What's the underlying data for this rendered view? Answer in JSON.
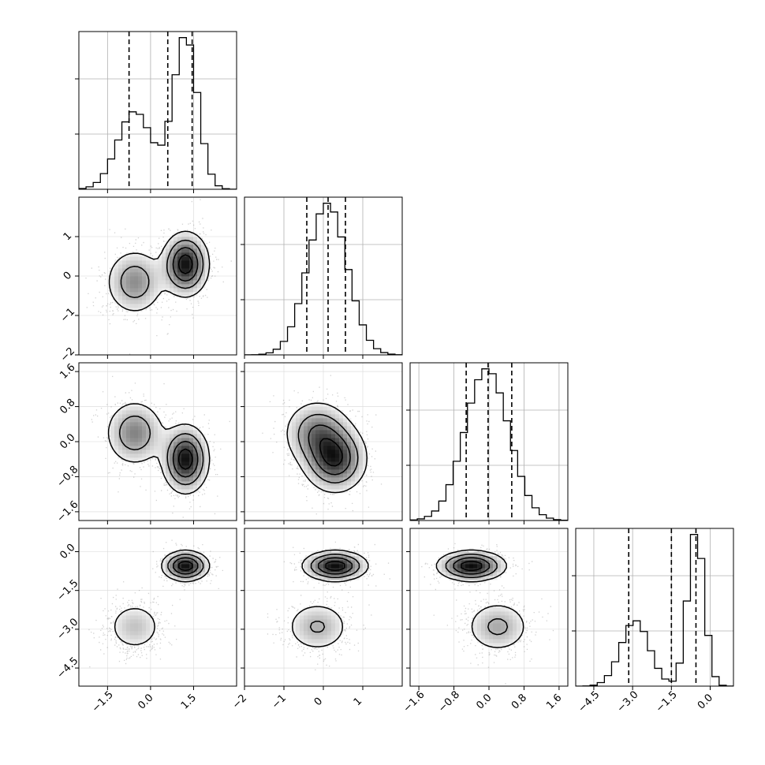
{
  "chart_data": {
    "type": "corner",
    "title": "",
    "params": [
      {
        "range": [
          -2.5,
          3.0
        ],
        "ticks": [
          -1.5,
          0.0,
          1.5
        ],
        "tick_labels": [
          "−1.5",
          "0.0",
          "1.5"
        ],
        "quantiles": [
          -0.75,
          0.6,
          1.45
        ],
        "modes": [
          {
            "m": -0.55,
            "s": 0.6,
            "w": 0.42
          },
          {
            "m": 1.22,
            "s": 0.42,
            "w": 0.58
          }
        ]
      },
      {
        "range": [
          -2.0,
          2.0
        ],
        "ticks": [
          -2,
          -1,
          0,
          1
        ],
        "tick_labels": [
          "−2",
          "−1",
          "0",
          "1"
        ],
        "x_tick_labels": [
          "−2",
          "−1",
          "0",
          "1"
        ],
        "quantiles": [
          -0.42,
          0.12,
          0.56
        ],
        "modes": [
          {
            "m": 0.1,
            "s": 0.5,
            "w": 1.0
          }
        ]
      },
      {
        "range": [
          -1.8,
          1.8
        ],
        "ticks": [
          -1.6,
          -0.8,
          0.0,
          0.8,
          1.6
        ],
        "tick_labels": [
          "−1.6",
          "−0.8",
          "0.0",
          "0.8",
          "1.6"
        ],
        "quantiles": [
          -0.52,
          -0.02,
          0.52
        ],
        "modes": [
          {
            "m": -0.05,
            "s": 0.5,
            "w": 1.0
          }
        ]
      },
      {
        "range": [
          -5.2,
          0.9
        ],
        "ticks": [
          -4.5,
          -3.0,
          -1.5,
          0.0
        ],
        "tick_labels": [
          "−4.5",
          "−3.0",
          "−1.5",
          "0.0"
        ],
        "quantiles": [
          -3.15,
          -1.5,
          -0.55
        ],
        "modes": [
          {
            "m": -2.9,
            "s": 0.55,
            "w": 0.42
          },
          {
            "m": -0.55,
            "s": 0.32,
            "w": 0.58
          }
        ]
      }
    ],
    "clusters": [
      {
        "w": 0.42,
        "mean": [
          -0.55,
          -0.15,
          0.2,
          -2.9
        ],
        "sd": [
          0.55,
          0.45,
          0.4,
          0.55
        ]
      },
      {
        "w": 0.58,
        "mean": [
          1.22,
          0.3,
          -0.4,
          -0.55
        ],
        "sd": [
          0.42,
          0.42,
          0.4,
          0.3
        ]
      }
    ],
    "grid": true,
    "legend": "none"
  }
}
